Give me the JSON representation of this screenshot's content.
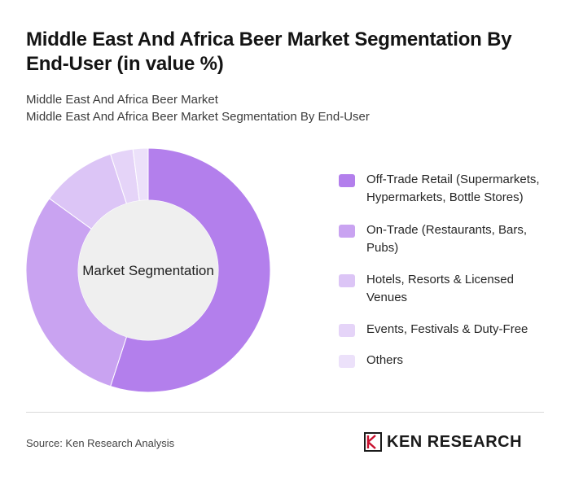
{
  "header": {
    "title": "Middle East And Africa Beer Market Segmentation By End-User (in value %)",
    "subtitle_line1": "Middle East And Africa Beer Market",
    "subtitle_line2": "Middle East And Africa Beer Market Segmentation By End-User"
  },
  "chart_data": {
    "type": "pie",
    "center_label": "Market Segmentation",
    "categories": [
      "Off-Trade Retail (Supermarkets, Hypermarkets, Bottle Stores)",
      "On-Trade (Restaurants, Bars, Pubs)",
      "Hotels, Resorts & Licensed Venues",
      "Events, Festivals & Duty-Free",
      "Others"
    ],
    "values": [
      55,
      30,
      10,
      3,
      2
    ],
    "colors": [
      "#b37fec",
      "#c9a3f1",
      "#dcc5f6",
      "#e5d4f8",
      "#ece1fa"
    ],
    "legend_position": "right"
  },
  "footer": {
    "source": "Source: Ken Research Analysis",
    "logo_text": "KEN RESEARCH"
  }
}
